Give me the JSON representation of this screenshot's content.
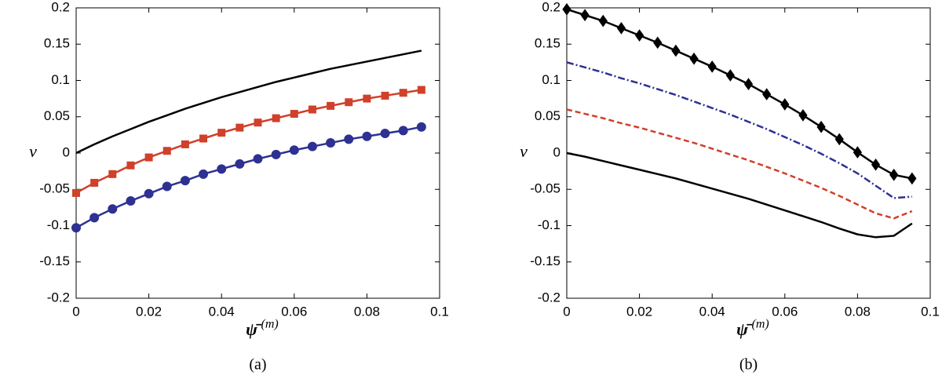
{
  "chart_data": [
    {
      "type": "line",
      "caption": "(a)",
      "ylabel": "ν",
      "xlabel": "ψ̄",
      "xlabel_sup": "(m)",
      "x": [
        0,
        0.005,
        0.01,
        0.015,
        0.02,
        0.025,
        0.03,
        0.035,
        0.04,
        0.045,
        0.05,
        0.055,
        0.06,
        0.065,
        0.07,
        0.075,
        0.08,
        0.085,
        0.09,
        0.095
      ],
      "xlim": [
        0,
        0.1
      ],
      "xticks": [
        0,
        0.02,
        0.04,
        0.06,
        0.08,
        0.1
      ],
      "ylim": [
        -0.2,
        0.2
      ],
      "yticks": [
        -0.2,
        -0.15,
        -0.1,
        -0.05,
        0,
        0.05,
        0.1,
        0.15,
        0.2
      ],
      "series": [
        {
          "color": "#000000",
          "marker": "none",
          "dash": "solid",
          "values": [
            0,
            0.012,
            0.023,
            0.033,
            0.043,
            0.052,
            0.061,
            0.069,
            0.077,
            0.084,
            0.091,
            0.098,
            0.104,
            0.11,
            0.116,
            0.121,
            0.126,
            0.131,
            0.136,
            0.141
          ]
        },
        {
          "color": "#d0402a",
          "marker": "square",
          "dash": "solid",
          "values": [
            -0.055,
            -0.041,
            -0.029,
            -0.017,
            -0.006,
            0.003,
            0.012,
            0.02,
            0.028,
            0.035,
            0.042,
            0.048,
            0.054,
            0.06,
            0.065,
            0.07,
            0.075,
            0.079,
            0.083,
            0.087
          ]
        },
        {
          "color": "#2e3192",
          "marker": "circle",
          "dash": "solid",
          "values": [
            -0.103,
            -0.089,
            -0.077,
            -0.066,
            -0.056,
            -0.046,
            -0.038,
            -0.029,
            -0.022,
            -0.015,
            -0.008,
            -0.002,
            0.004,
            0.009,
            0.014,
            0.019,
            0.023,
            0.027,
            0.031,
            0.036
          ]
        }
      ]
    },
    {
      "type": "line",
      "caption": "(b)",
      "ylabel": "ν",
      "xlabel": "ψ̄",
      "xlabel_sup": "(m)",
      "x": [
        0,
        0.005,
        0.01,
        0.015,
        0.02,
        0.025,
        0.03,
        0.035,
        0.04,
        0.045,
        0.05,
        0.055,
        0.06,
        0.065,
        0.07,
        0.075,
        0.08,
        0.085,
        0.09,
        0.095
      ],
      "xlim": [
        0,
        0.1
      ],
      "xticks": [
        0,
        0.02,
        0.04,
        0.06,
        0.08,
        0.1
      ],
      "ylim": [
        -0.2,
        0.2
      ],
      "yticks": [
        -0.2,
        -0.15,
        -0.1,
        -0.05,
        0,
        0.05,
        0.1,
        0.15,
        0.2
      ],
      "series": [
        {
          "color": "#000000",
          "marker": "diamond",
          "dash": "solid",
          "values": [
            0.198,
            0.19,
            0.182,
            0.172,
            0.162,
            0.152,
            0.141,
            0.13,
            0.119,
            0.107,
            0.095,
            0.081,
            0.067,
            0.052,
            0.036,
            0.019,
            0.001,
            -0.016,
            -0.03,
            -0.035
          ]
        },
        {
          "color": "#2e3192",
          "marker": "none",
          "dash": "dashdot",
          "values": [
            0.125,
            0.118,
            0.111,
            0.103,
            0.096,
            0.088,
            0.08,
            0.071,
            0.062,
            0.053,
            0.043,
            0.033,
            0.022,
            0.011,
            -0.001,
            -0.014,
            -0.028,
            -0.045,
            -0.062,
            -0.06
          ]
        },
        {
          "color": "#d0402a",
          "marker": "none",
          "dash": "dashed",
          "values": [
            0.06,
            0.054,
            0.048,
            0.041,
            0.035,
            0.028,
            0.021,
            0.014,
            0.006,
            -0.002,
            -0.01,
            -0.019,
            -0.028,
            -0.038,
            -0.048,
            -0.059,
            -0.071,
            -0.083,
            -0.09,
            -0.08
          ]
        },
        {
          "color": "#000000",
          "marker": "none",
          "dash": "solid",
          "values": [
            0,
            -0.005,
            -0.011,
            -0.017,
            -0.023,
            -0.029,
            -0.035,
            -0.042,
            -0.049,
            -0.056,
            -0.063,
            -0.071,
            -0.079,
            -0.087,
            -0.095,
            -0.104,
            -0.112,
            -0.116,
            -0.114,
            -0.097
          ]
        }
      ]
    }
  ]
}
